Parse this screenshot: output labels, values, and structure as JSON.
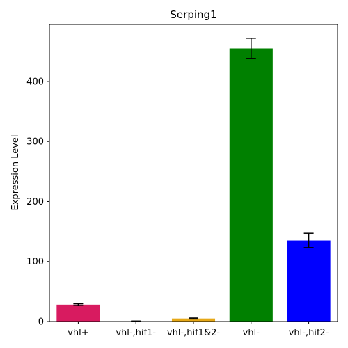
{
  "chart_data": {
    "type": "bar",
    "title": "Serping1",
    "xlabel": "",
    "ylabel": "Expression Level",
    "categories": [
      "vhl+",
      "vhl-,hif1-",
      "vhl-,hif1&2-",
      "vhl-",
      "vhl-,hif2-"
    ],
    "values": [
      28,
      0.5,
      5,
      455,
      135
    ],
    "errors": [
      1.5,
      0.3,
      0.8,
      17,
      12
    ],
    "colors": [
      "#d81b60",
      "#7b1fa2",
      "#e6a817",
      "#008000",
      "#0000ff"
    ],
    "ylim": [
      0,
      495
    ],
    "yticks": [
      0,
      100,
      200,
      300,
      400
    ],
    "grid": false,
    "legend": "none"
  }
}
